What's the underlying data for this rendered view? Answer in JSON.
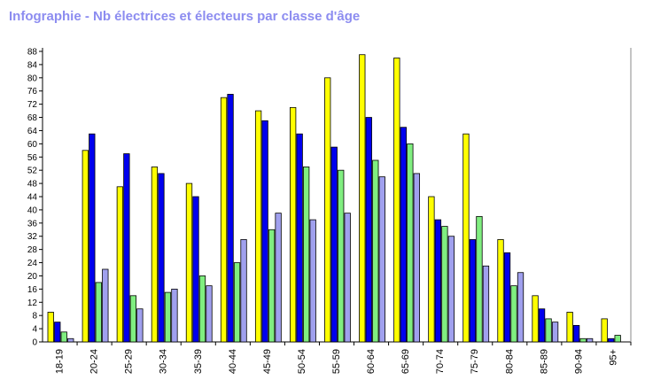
{
  "title": "Infographie - Nb électrices et électeurs par classe d'âge",
  "colors": {
    "title": "#8c8cf0",
    "series": [
      "#ffff00",
      "#0000ee",
      "#80ee80",
      "#a0a0ee"
    ]
  },
  "chart_data": {
    "type": "bar",
    "title": "Infographie - Nb électrices et électeurs par classe d'âge",
    "xlabel": "",
    "ylabel": "",
    "ylim": [
      0,
      88
    ],
    "yticks": [
      0,
      4,
      8,
      12,
      16,
      20,
      24,
      28,
      32,
      36,
      40,
      44,
      48,
      52,
      56,
      60,
      64,
      68,
      72,
      76,
      80,
      84,
      88
    ],
    "grid": false,
    "legend": "none",
    "categories": [
      "18-19",
      "20-24",
      "25-29",
      "30-34",
      "35-39",
      "40-44",
      "45-49",
      "50-54",
      "55-59",
      "60-64",
      "65-69",
      "70-74",
      "75-79",
      "80-84",
      "85-89",
      "90-94",
      "95+"
    ],
    "series": [
      {
        "values": [
          9,
          58,
          47,
          53,
          48,
          74,
          70,
          71,
          80,
          87,
          86,
          44,
          63,
          31,
          14,
          9,
          7
        ]
      },
      {
        "values": [
          6,
          63,
          57,
          51,
          44,
          75,
          67,
          63,
          59,
          68,
          65,
          37,
          31,
          27,
          10,
          5,
          1
        ]
      },
      {
        "values": [
          3,
          18,
          14,
          15,
          20,
          24,
          34,
          53,
          52,
          55,
          60,
          35,
          38,
          17,
          7,
          1,
          2
        ]
      },
      {
        "values": [
          1,
          22,
          10,
          16,
          17,
          31,
          39,
          37,
          39,
          50,
          51,
          32,
          23,
          21,
          6,
          1,
          0
        ]
      }
    ]
  }
}
